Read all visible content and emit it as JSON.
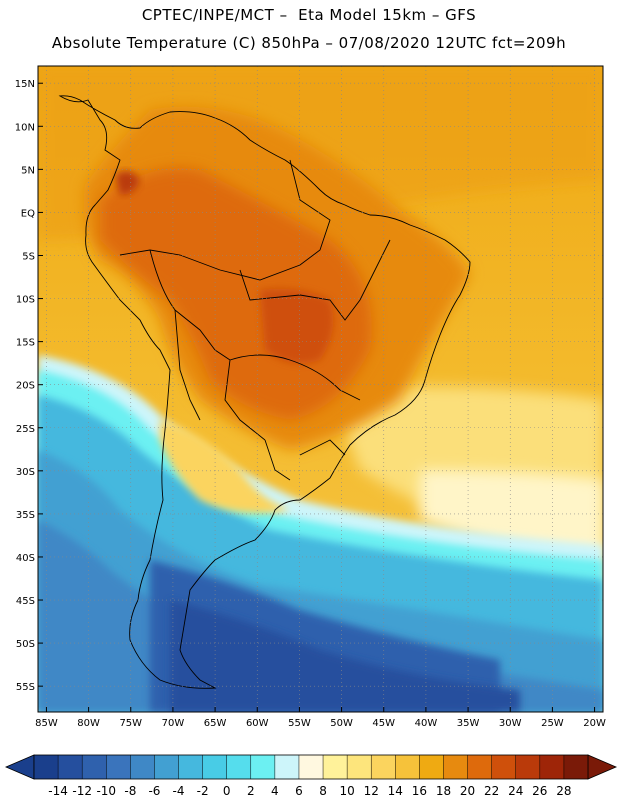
{
  "title_line1": "CPTEC/INPE/MCT –  Eta Model 15km – GFS",
  "title_line2": "Absolute Temperature (C) 850hPa – 07/08/2020 12UTC fct=209h",
  "map": {
    "lat_labels": [
      "15N",
      "10N",
      "5N",
      "EQ",
      "5S",
      "10S",
      "15S",
      "20S",
      "25S",
      "30S",
      "35S",
      "40S",
      "45S",
      "50S",
      "55S"
    ],
    "lat_values": [
      15,
      10,
      5,
      0,
      -5,
      -10,
      -15,
      -20,
      -25,
      -30,
      -35,
      -40,
      -45,
      -50,
      -55
    ],
    "lon_labels": [
      "85W",
      "80W",
      "75W",
      "70W",
      "65W",
      "60W",
      "55W",
      "50W",
      "45W",
      "40W",
      "35W",
      "30W",
      "25W",
      "20W"
    ],
    "lon_values": [
      -85,
      -80,
      -75,
      -70,
      -65,
      -60,
      -55,
      -50,
      -45,
      -40,
      -35,
      -30,
      -25,
      -20
    ],
    "lat_range": [
      -58,
      17
    ],
    "lon_range": [
      -86,
      -19
    ]
  },
  "colorbar": {
    "labels": [
      "-14",
      "-12",
      "-10",
      "-8",
      "-6",
      "-4",
      "-2",
      "0",
      "2",
      "4",
      "6",
      "8",
      "10",
      "12",
      "14",
      "16",
      "18",
      "20",
      "22",
      "24",
      "26",
      "28"
    ],
    "colors": [
      "#1a3f8c",
      "#254f9e",
      "#2f61ad",
      "#3a74bc",
      "#3f88c6",
      "#42a0d2",
      "#45b8de",
      "#48cce6",
      "#55dded",
      "#6cf0f2",
      "#cdf5fa",
      "#fff8e0",
      "#fff29a",
      "#fde57c",
      "#fbd45e",
      "#f6c23a",
      "#efaa12",
      "#e78a0f",
      "#de6a0c",
      "#cf500b",
      "#ba3a0a",
      "#9e2508",
      "#7a1a08"
    ]
  }
}
